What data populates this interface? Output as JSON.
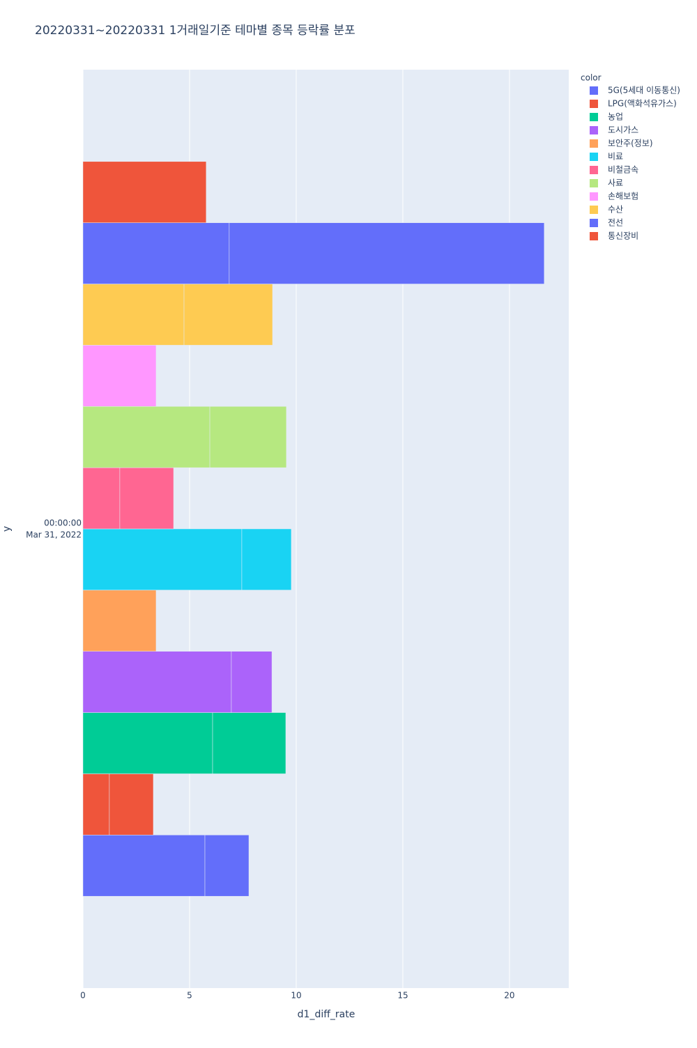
{
  "chart_data": {
    "type": "bar",
    "orientation": "horizontal",
    "title": "20220331~20220331 1거래일기준 테마별 종목 등락률 분포",
    "x_label": "d1_diff_rate",
    "y_label": "y",
    "y_category_label": [
      "00:00:00",
      "Mar 31, 2022"
    ],
    "legend_title": "color",
    "legend": "top-right-outside",
    "grid": true,
    "xlim": [
      0,
      22.78
    ],
    "xticks": [
      0,
      5,
      10,
      15,
      20
    ],
    "series": [
      {
        "name": "5G(5세대 이동통신)",
        "color": "#636efa",
        "values": [
          5.72,
          2.06
        ]
      },
      {
        "name": "LPG(액화석유가스)",
        "color": "#EF553B",
        "values": [
          1.24,
          2.06
        ]
      },
      {
        "name": "농업",
        "color": "#00cc96",
        "values": [
          6.08,
          3.43
        ]
      },
      {
        "name": "도시가스",
        "color": "#ab63fa",
        "values": [
          6.96,
          1.9
        ]
      },
      {
        "name": "보안주(정보)",
        "color": "#FFA15A",
        "values": [
          3.43
        ]
      },
      {
        "name": "비료",
        "color": "#19d3f3",
        "values": [
          7.45,
          2.32
        ]
      },
      {
        "name": "비철금속",
        "color": "#FF6692",
        "values": [
          1.73,
          2.52
        ]
      },
      {
        "name": "사료",
        "color": "#B6E880",
        "values": [
          5.95,
          3.59
        ]
      },
      {
        "name": "손해보험",
        "color": "#FF97FF",
        "values": [
          3.43
        ]
      },
      {
        "name": "수산",
        "color": "#FECB52",
        "values": [
          4.74,
          4.15
        ]
      },
      {
        "name": "전선",
        "color": "#636efa",
        "values": [
          6.86,
          14.77
        ]
      },
      {
        "name": "통신장비",
        "color": "#EF553B",
        "values": [
          5.78
        ]
      }
    ]
  }
}
